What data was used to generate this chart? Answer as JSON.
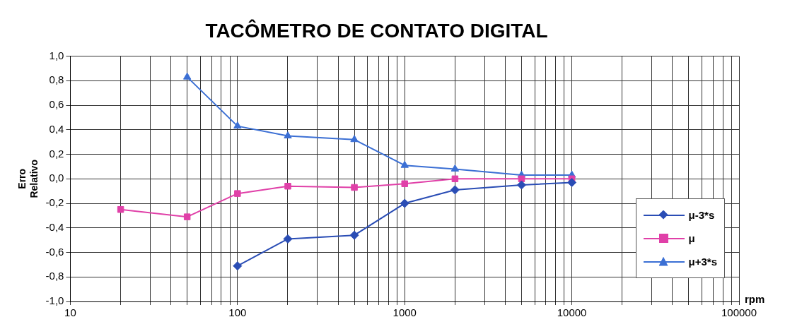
{
  "chart_data": {
    "type": "line",
    "title": "TACÔMETRO DE CONTATO DIGITAL",
    "xlabel": "rpm",
    "ylabel": "Erro Relativo",
    "log": "x",
    "x": [
      20,
      50,
      100,
      200,
      500,
      1000,
      2000,
      5000,
      10000
    ],
    "series": [
      {
        "name": "μ-3*s",
        "color": "#2a4db5",
        "marker": "diamond",
        "values": [
          null,
          null,
          -0.71,
          -0.49,
          -0.46,
          -0.2,
          -0.09,
          -0.05,
          -0.03
        ]
      },
      {
        "name": "μ",
        "color": "#e040a8",
        "marker": "square",
        "values": [
          -0.25,
          -0.31,
          -0.12,
          -0.06,
          -0.07,
          -0.04,
          0.0,
          0.0,
          0.0
        ]
      },
      {
        "name": "μ+3*s",
        "color": "#3b6fd4",
        "marker": "triangle",
        "values": [
          null,
          0.83,
          0.43,
          0.35,
          0.32,
          0.11,
          0.08,
          0.03,
          0.03
        ]
      }
    ],
    "xlim": [
      10,
      100000
    ],
    "xticks": [
      10,
      {
        "value": 20,
        "label": null
      },
      {
        "value": 30,
        "label": null
      },
      {
        "value": 40,
        "label": null
      },
      {
        "value": 50,
        "label": null
      },
      {
        "value": 60,
        "label": null
      },
      {
        "value": 70,
        "label": null
      },
      {
        "value": 80,
        "label": null
      },
      {
        "value": 90,
        "label": null
      },
      100,
      {
        "value": 200,
        "label": null
      },
      {
        "value": 300,
        "label": null
      },
      {
        "value": 400,
        "label": null
      },
      {
        "value": 500,
        "label": null
      },
      {
        "value": 600,
        "label": null
      },
      {
        "value": 700,
        "label": null
      },
      {
        "value": 800,
        "label": null
      },
      {
        "value": 900,
        "label": null
      },
      1000,
      {
        "value": 2000,
        "label": null
      },
      {
        "value": 3000,
        "label": null
      },
      {
        "value": 4000,
        "label": null
      },
      {
        "value": 5000,
        "label": null
      },
      {
        "value": 6000,
        "label": null
      },
      {
        "value": 7000,
        "label": null
      },
      {
        "value": 8000,
        "label": null
      },
      {
        "value": 9000,
        "label": null
      },
      10000,
      {
        "value": 20000,
        "label": null
      },
      {
        "value": 30000,
        "label": null
      },
      {
        "value": 40000,
        "label": null
      },
      {
        "value": 50000,
        "label": null
      },
      {
        "value": 60000,
        "label": null
      },
      {
        "value": 70000,
        "label": null
      },
      {
        "value": 80000,
        "label": null
      },
      {
        "value": 90000,
        "label": null
      },
      100000
    ],
    "ylim": [
      -1.0,
      1.0
    ],
    "yticks": [
      {
        "value": -1.0,
        "label": "-1,0"
      },
      {
        "value": -0.8,
        "label": "-0,8"
      },
      {
        "value": -0.6,
        "label": "-0,6"
      },
      {
        "value": -0.4,
        "label": "-0,4"
      },
      {
        "value": -0.2,
        "label": "-0,2"
      },
      {
        "value": 0.0,
        "label": "0,0"
      },
      {
        "value": 0.2,
        "label": "0,2"
      },
      {
        "value": 0.4,
        "label": "0,4"
      },
      {
        "value": 0.6,
        "label": "0,6"
      },
      {
        "value": 0.8,
        "label": "0,8"
      },
      {
        "value": 1.0,
        "label": "1,0"
      }
    ],
    "grid": true,
    "legend": "bottom right"
  }
}
